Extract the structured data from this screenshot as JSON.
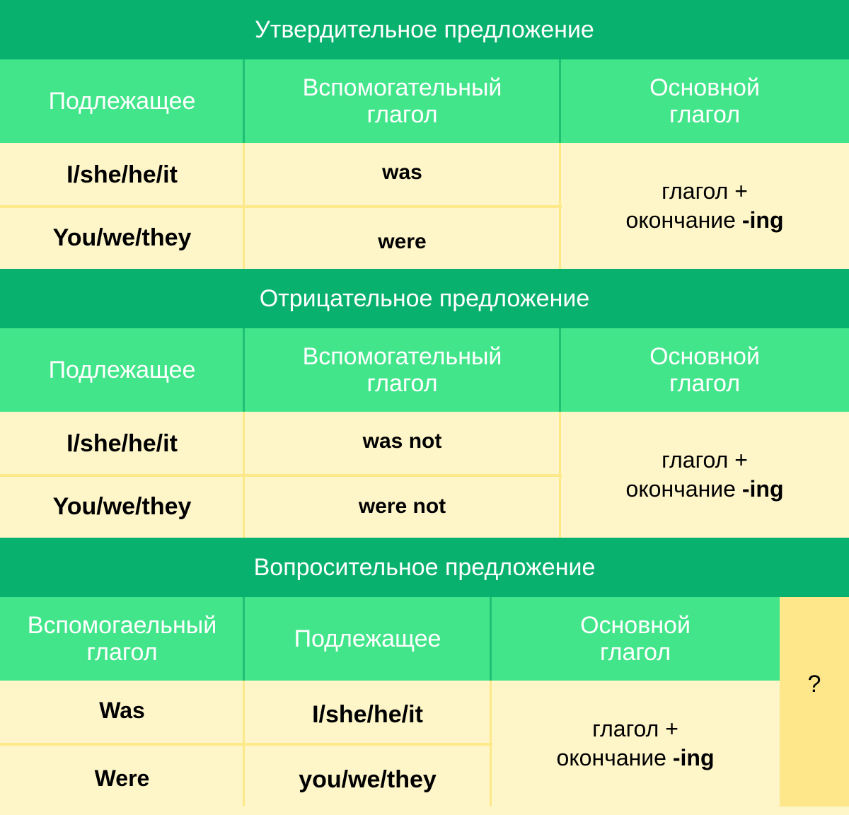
{
  "sections": [
    {
      "title": "Утвердительное предложение",
      "headers": [
        "Подлежащее",
        "Вспомогательный глагол",
        "Основной глагол"
      ],
      "rows": [
        [
          "I/she/he/it",
          "was"
        ],
        [
          "You/we/they",
          "were"
        ]
      ],
      "main_verb": "глагол +",
      "main_verb2": "окончание",
      "suffix": "-ing"
    },
    {
      "title": "Отрицательное предложение",
      "headers": [
        "Подлежащее",
        "Вспомогательный глагол",
        "Основной глагол"
      ],
      "rows": [
        [
          "I/she/he/it",
          "was not"
        ],
        [
          "You/we/they",
          "were not"
        ]
      ],
      "main_verb": "глагол +",
      "main_verb2": "окончание",
      "suffix": "-ing"
    },
    {
      "title": "Вопросительное предложение",
      "headers": [
        "Вспомогаельный глагол",
        "Подлежащее",
        "Основной глагол"
      ],
      "rows": [
        [
          "Was",
          "I/she/he/it"
        ],
        [
          "Were",
          "you/we/they"
        ]
      ],
      "main_verb": "глагол +",
      "main_verb2": "окончание",
      "suffix": "-ing",
      "question_mark": "?"
    }
  ],
  "colors": {
    "title_bg": "#08b26e",
    "header_bg": "#43e58a",
    "body_bg": "#fef5c8",
    "border": "#fde98a",
    "question_bg": "#fee68a"
  }
}
